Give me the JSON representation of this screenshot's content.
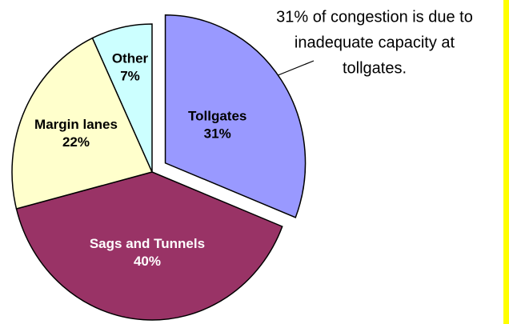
{
  "chart_data": {
    "type": "pie",
    "categories": [
      "Tollgates",
      "Sags and Tunnels",
      "Margin lanes",
      "Other"
    ],
    "values": [
      31,
      40,
      22,
      7
    ],
    "value_labels": [
      "31%",
      "40%",
      "22%",
      "7%"
    ],
    "colors": [
      "#9999ff",
      "#993366",
      "#ffffcc",
      "#ccffff"
    ],
    "exploded": [
      true,
      false,
      false,
      false
    ],
    "annotation": [
      "31% of congestion is due to",
      "inadequate capacity at",
      "tollgates."
    ]
  }
}
